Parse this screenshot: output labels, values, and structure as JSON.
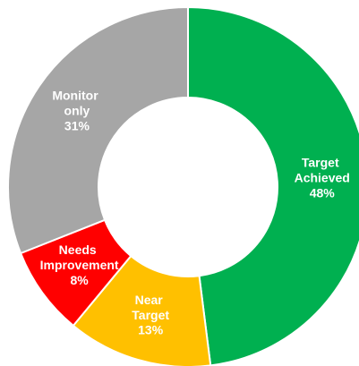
{
  "chart_data": {
    "type": "donut",
    "categories": [
      "Target Achieved",
      "Near Target",
      "Needs Improvement",
      "Monitor only"
    ],
    "values": [
      48,
      13,
      8,
      31
    ],
    "value_labels": [
      "48%",
      "13%",
      "8%",
      "31%"
    ],
    "colors": [
      "#00b050",
      "#ffc000",
      "#ff0000",
      "#a6a6a6"
    ]
  }
}
